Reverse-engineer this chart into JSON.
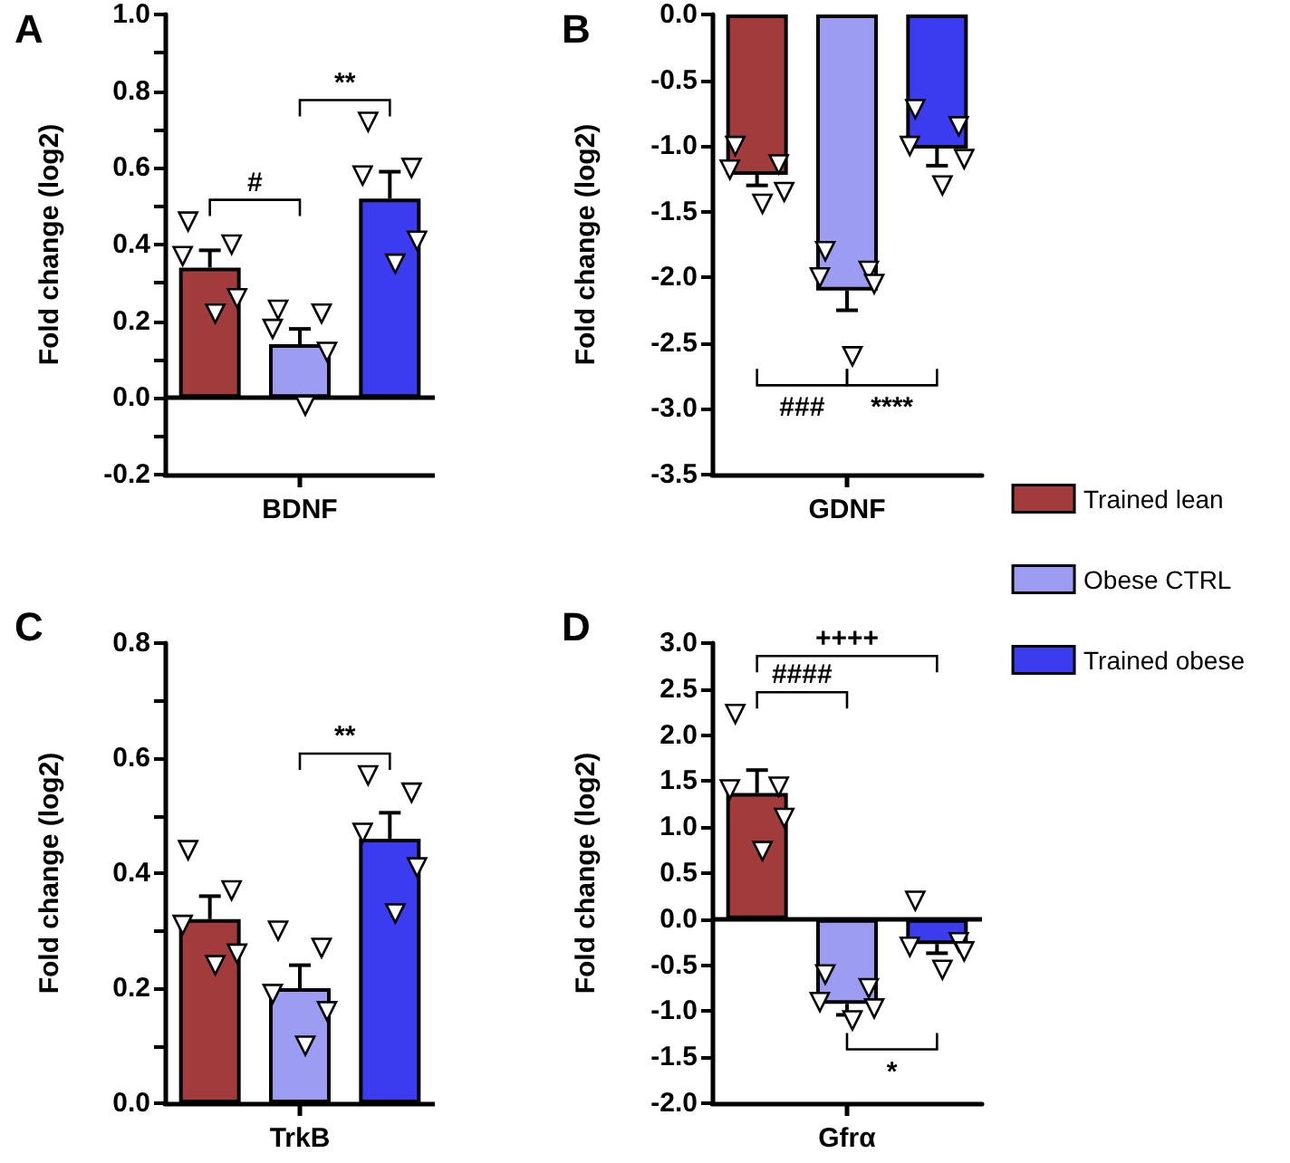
{
  "chart_data": [
    {
      "type": "bar",
      "title": "A",
      "ylabel": "Fold change (log2)",
      "categories": [
        null,
        "BDNF",
        null
      ],
      "ylim": [
        -0.2,
        1.0
      ],
      "marker": "triangle",
      "legend": false,
      "yticks": [
        {
          "value": -0.2,
          "label": "-0.2"
        },
        {
          "value": -0.1,
          "label": null
        },
        {
          "value": 0,
          "label": "0.0"
        },
        {
          "value": 0.1,
          "label": null
        },
        {
          "value": 0.2,
          "label": "0.2"
        },
        {
          "value": 0.3,
          "label": null
        },
        {
          "value": 0.4,
          "label": "0.4"
        },
        {
          "value": 0.5,
          "label": null
        },
        {
          "value": 0.6,
          "label": "0.6"
        },
        {
          "value": 0.7,
          "label": null
        },
        {
          "value": 0.8,
          "label": "0.8"
        },
        {
          "value": 0.9,
          "label": null
        },
        {
          "value": 1.0,
          "label": "1.0"
        }
      ],
      "ref_lines": [
        {
          "axis": "y",
          "value": 0
        }
      ],
      "annotations": [
        "#",
        "**"
      ],
      "series": [
        {
          "color": "#a23b3b",
          "values": [
            0.34,
            null,
            null
          ],
          "errors": [
            0.045,
            null,
            null
          ]
        },
        {
          "color": "#9c9cf2",
          "values": [
            null,
            0.14,
            null
          ],
          "errors": [
            null,
            0.04,
            null
          ]
        },
        {
          "color": "#3b3bf0",
          "values": [
            null,
            null,
            0.52
          ],
          "errors": [
            null,
            null,
            0.07
          ]
        },
        {
          "type": "scatter",
          "color": "#ffffff",
          "values": [
            0.46,
            0.23,
            0.72
          ]
        },
        {
          "type": "scatter",
          "color": "#ffffff",
          "values": [
            0.4,
            0.22,
            0.6
          ]
        },
        {
          "type": "scatter",
          "color": "#ffffff",
          "values": [
            0.37,
            0.18,
            0.58
          ]
        },
        {
          "type": "scatter",
          "color": "#ffffff",
          "values": [
            0.26,
            0.12,
            0.41
          ]
        },
        {
          "type": "scatter",
          "color": "#ffffff",
          "values": [
            0.22,
            -0.02,
            0.35
          ]
        }
      ]
    },
    {
      "type": "bar",
      "title": "B",
      "ylabel": "Fold change (log2)",
      "categories": [
        null,
        "GDNF",
        null
      ],
      "ylim": [
        -3.5,
        0
      ],
      "marker": "triangle",
      "legend": "right",
      "yticks": [
        {
          "value": -3.5,
          "label": "-3.5"
        },
        {
          "value": -3.0,
          "label": "-3.0"
        },
        {
          "value": -2.5,
          "label": "-2.5"
        },
        {
          "value": -2.0,
          "label": "-2.0"
        },
        {
          "value": -1.5,
          "label": "-1.5"
        },
        {
          "value": -1.0,
          "label": "-1.0"
        },
        {
          "value": -0.5,
          "label": "-0.5"
        },
        {
          "value": 0,
          "label": "0.0"
        }
      ],
      "annotations": [
        "###",
        "****"
      ],
      "series": [
        {
          "name": "Trained lean",
          "color": "#a23b3b",
          "values": [
            -1.22,
            null,
            null
          ],
          "errors": [
            0.08,
            null,
            null
          ]
        },
        {
          "name": "Obese CTRL",
          "color": "#9c9cf2",
          "values": [
            null,
            -2.1,
            null
          ],
          "errors": [
            null,
            0.15,
            null
          ]
        },
        {
          "name": "Trained obese",
          "color": "#3b3bf0",
          "values": [
            null,
            null,
            -1.02
          ],
          "errors": [
            null,
            null,
            0.13
          ]
        },
        {
          "type": "scatter",
          "color": "#ffffff",
          "values": [
            -1.0,
            -1.8,
            -0.72
          ]
        },
        {
          "type": "scatter",
          "color": "#ffffff",
          "values": [
            -1.14,
            -1.95,
            -0.85
          ]
        },
        {
          "type": "scatter",
          "color": "#ffffff",
          "values": [
            -1.18,
            -2.0,
            -1.0
          ]
        },
        {
          "type": "scatter",
          "color": "#ffffff",
          "values": [
            -1.35,
            -2.05,
            -1.1
          ]
        },
        {
          "type": "scatter",
          "color": "#ffffff",
          "values": [
            -1.44,
            -2.6,
            -1.3
          ]
        }
      ]
    },
    {
      "type": "bar",
      "title": "C",
      "ylabel": "Fold change (log2)",
      "categories": [
        null,
        "TrkB",
        null
      ],
      "ylim": [
        0,
        0.8
      ],
      "marker": "triangle",
      "legend": false,
      "yticks": [
        {
          "value": 0,
          "label": "0.0"
        },
        {
          "value": 0.1,
          "label": null
        },
        {
          "value": 0.2,
          "label": "0.2"
        },
        {
          "value": 0.3,
          "label": null
        },
        {
          "value": 0.4,
          "label": "0.4"
        },
        {
          "value": 0.5,
          "label": null
        },
        {
          "value": 0.6,
          "label": "0.6"
        },
        {
          "value": 0.7,
          "label": null
        },
        {
          "value": 0.8,
          "label": "0.8"
        }
      ],
      "annotations": [
        "**"
      ],
      "series": [
        {
          "color": "#a23b3b",
          "values": [
            0.32,
            null,
            null
          ],
          "errors": [
            0.04,
            null,
            null
          ]
        },
        {
          "color": "#9c9cf2",
          "values": [
            null,
            0.2,
            null
          ],
          "errors": [
            null,
            0.04,
            null
          ]
        },
        {
          "color": "#3b3bf0",
          "values": [
            null,
            null,
            0.46
          ],
          "errors": [
            null,
            null,
            0.045
          ]
        },
        {
          "type": "scatter",
          "color": "#ffffff",
          "values": [
            0.44,
            0.3,
            0.57
          ]
        },
        {
          "type": "scatter",
          "color": "#ffffff",
          "values": [
            0.37,
            0.27,
            0.54
          ]
        },
        {
          "type": "scatter",
          "color": "#ffffff",
          "values": [
            0.31,
            0.19,
            0.47
          ]
        },
        {
          "type": "scatter",
          "color": "#ffffff",
          "values": [
            0.26,
            0.16,
            0.41
          ]
        },
        {
          "type": "scatter",
          "color": "#ffffff",
          "values": [
            0.24,
            0.1,
            0.33
          ]
        }
      ]
    },
    {
      "type": "bar",
      "title": "D",
      "ylabel": "Fold change (log2)",
      "categories": [
        null,
        "Gfrα",
        null
      ],
      "ylim": [
        -2.0,
        3.0
      ],
      "marker": "triangle",
      "legend": false,
      "yticks": [
        {
          "value": -2.0,
          "label": "-2.0"
        },
        {
          "value": -1.5,
          "label": "-1.5"
        },
        {
          "value": -1.0,
          "label": "-1.0"
        },
        {
          "value": -0.5,
          "label": "-0.5"
        },
        {
          "value": 0,
          "label": "0.0"
        },
        {
          "value": 0.5,
          "label": "0.5"
        },
        {
          "value": 1.0,
          "label": "1.0"
        },
        {
          "value": 1.5,
          "label": "1.5"
        },
        {
          "value": 2.0,
          "label": "2.0"
        },
        {
          "value": 2.5,
          "label": "2.5"
        },
        {
          "value": 3.0,
          "label": "3.0"
        }
      ],
      "ref_lines": [
        {
          "axis": "y",
          "value": 0
        }
      ],
      "annotations": [
        "####",
        "++++",
        "*"
      ],
      "series": [
        {
          "color": "#a23b3b",
          "values": [
            1.37,
            null,
            null
          ],
          "errors": [
            0.25,
            null,
            null
          ]
        },
        {
          "color": "#9c9cf2",
          "values": [
            null,
            -0.92,
            null
          ],
          "errors": [
            null,
            0.12,
            null
          ]
        },
        {
          "color": "#3b3bf0",
          "values": [
            null,
            null,
            -0.27
          ],
          "errors": [
            null,
            null,
            0.1
          ]
        },
        {
          "type": "scatter",
          "color": "#ffffff",
          "values": [
            2.23,
            -0.6,
            0.2
          ]
        },
        {
          "type": "scatter",
          "color": "#ffffff",
          "values": [
            1.44,
            -0.75,
            -0.25
          ]
        },
        {
          "type": "scatter",
          "color": "#ffffff",
          "values": [
            1.41,
            -0.9,
            -0.3
          ]
        },
        {
          "type": "scatter",
          "color": "#ffffff",
          "values": [
            1.1,
            -0.97,
            -0.35
          ]
        },
        {
          "type": "scatter",
          "color": "#ffffff",
          "values": [
            0.74,
            -1.1,
            -0.55
          ]
        }
      ]
    }
  ]
}
